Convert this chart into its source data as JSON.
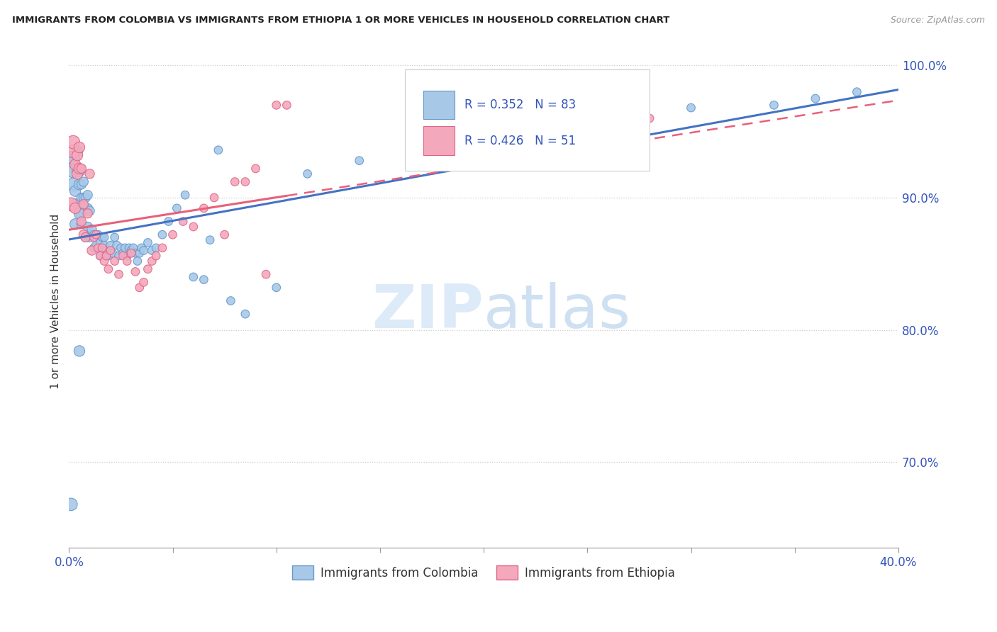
{
  "title": "IMMIGRANTS FROM COLOMBIA VS IMMIGRANTS FROM ETHIOPIA 1 OR MORE VEHICLES IN HOUSEHOLD CORRELATION CHART",
  "source": "Source: ZipAtlas.com",
  "ylabel": "1 or more Vehicles in Household",
  "x_min": 0.0,
  "x_max": 0.4,
  "y_min": 0.635,
  "y_max": 1.008,
  "x_ticks": [
    0.0,
    0.05,
    0.1,
    0.15,
    0.2,
    0.25,
    0.3,
    0.35,
    0.4
  ],
  "y_ticks": [
    0.7,
    0.8,
    0.9,
    1.0
  ],
  "y_tick_labels": [
    "70.0%",
    "80.0%",
    "90.0%",
    "100.0%"
  ],
  "colombia_color": "#a8c8e8",
  "ethiopia_color": "#f4a8bc",
  "colombia_edge": "#6699cc",
  "ethiopia_edge": "#dd6688",
  "regression_colombia_color": "#4472c4",
  "regression_ethiopia_color": "#e8607a",
  "R_colombia": 0.352,
  "N_colombia": 83,
  "R_ethiopia": 0.426,
  "N_ethiopia": 51,
  "legend_label_colombia": "Immigrants from Colombia",
  "legend_label_ethiopia": "Immigrants from Ethiopia",
  "watermark_zip": "ZIP",
  "watermark_atlas": "atlas",
  "colombia_x": [
    0.001,
    0.002,
    0.002,
    0.003,
    0.003,
    0.003,
    0.004,
    0.004,
    0.005,
    0.005,
    0.005,
    0.006,
    0.006,
    0.006,
    0.007,
    0.007,
    0.007,
    0.008,
    0.008,
    0.008,
    0.009,
    0.009,
    0.009,
    0.01,
    0.01,
    0.011,
    0.012,
    0.012,
    0.013,
    0.014,
    0.015,
    0.015,
    0.016,
    0.016,
    0.017,
    0.017,
    0.018,
    0.019,
    0.02,
    0.021,
    0.022,
    0.023,
    0.024,
    0.025,
    0.026,
    0.027,
    0.028,
    0.029,
    0.03,
    0.031,
    0.032,
    0.033,
    0.034,
    0.035,
    0.036,
    0.038,
    0.04,
    0.042,
    0.045,
    0.048,
    0.052,
    0.056,
    0.06,
    0.065,
    0.068,
    0.072,
    0.078,
    0.085,
    0.1,
    0.115,
    0.14,
    0.165,
    0.19,
    0.22,
    0.25,
    0.3,
    0.34,
    0.36,
    0.38,
    0.005,
    0.005,
    0.001,
    0.002
  ],
  "colombia_y": [
    0.668,
    0.92,
    0.91,
    0.88,
    0.895,
    0.905,
    0.92,
    0.935,
    0.89,
    0.91,
    0.92,
    0.88,
    0.9,
    0.91,
    0.892,
    0.9,
    0.912,
    0.87,
    0.89,
    0.9,
    0.878,
    0.892,
    0.902,
    0.87,
    0.89,
    0.876,
    0.862,
    0.872,
    0.864,
    0.872,
    0.856,
    0.866,
    0.86,
    0.87,
    0.864,
    0.87,
    0.86,
    0.856,
    0.864,
    0.858,
    0.87,
    0.864,
    0.856,
    0.862,
    0.858,
    0.862,
    0.856,
    0.862,
    0.86,
    0.862,
    0.858,
    0.852,
    0.858,
    0.862,
    0.86,
    0.866,
    0.86,
    0.862,
    0.872,
    0.882,
    0.892,
    0.902,
    0.84,
    0.838,
    0.868,
    0.936,
    0.822,
    0.812,
    0.832,
    0.918,
    0.928,
    0.928,
    0.948,
    0.948,
    0.958,
    0.968,
    0.97,
    0.975,
    0.98,
    0.784,
    0.888,
    0.93,
    0.93
  ],
  "ethiopia_x": [
    0.001,
    0.002,
    0.002,
    0.003,
    0.003,
    0.004,
    0.004,
    0.005,
    0.005,
    0.006,
    0.006,
    0.007,
    0.007,
    0.008,
    0.009,
    0.01,
    0.011,
    0.012,
    0.013,
    0.014,
    0.015,
    0.016,
    0.017,
    0.018,
    0.019,
    0.02,
    0.022,
    0.024,
    0.026,
    0.028,
    0.03,
    0.032,
    0.034,
    0.036,
    0.038,
    0.04,
    0.042,
    0.045,
    0.05,
    0.055,
    0.06,
    0.065,
    0.07,
    0.075,
    0.08,
    0.085,
    0.09,
    0.095,
    0.1,
    0.105,
    0.28
  ],
  "ethiopia_y": [
    0.895,
    0.935,
    0.942,
    0.892,
    0.925,
    0.918,
    0.932,
    0.922,
    0.938,
    0.922,
    0.882,
    0.872,
    0.895,
    0.87,
    0.888,
    0.918,
    0.86,
    0.87,
    0.872,
    0.862,
    0.856,
    0.862,
    0.852,
    0.856,
    0.846,
    0.86,
    0.852,
    0.842,
    0.856,
    0.852,
    0.858,
    0.844,
    0.832,
    0.836,
    0.846,
    0.852,
    0.856,
    0.862,
    0.872,
    0.882,
    0.878,
    0.892,
    0.9,
    0.872,
    0.912,
    0.912,
    0.922,
    0.842,
    0.97,
    0.97,
    0.96
  ]
}
